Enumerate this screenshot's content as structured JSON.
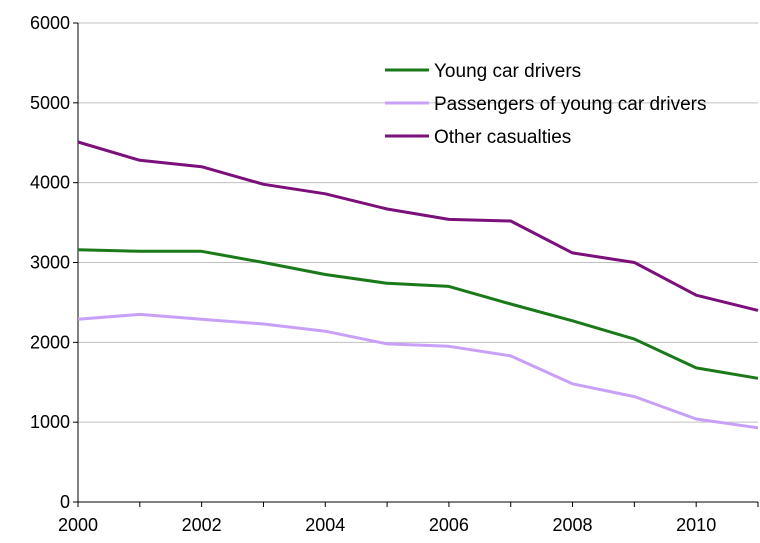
{
  "chart_data": {
    "type": "line",
    "title": "",
    "xlabel": "",
    "ylabel": "",
    "x": [
      2000,
      2001,
      2002,
      2003,
      2004,
      2005,
      2006,
      2007,
      2008,
      2009,
      2010,
      2011
    ],
    "xlim": [
      2000,
      2011
    ],
    "ylim": [
      0,
      6000
    ],
    "x_ticks": [
      2000,
      2002,
      2004,
      2006,
      2008,
      2010
    ],
    "y_ticks": [
      0,
      1000,
      2000,
      3000,
      4000,
      5000,
      6000
    ],
    "grid": true,
    "legend_position": "top-right",
    "series": [
      {
        "name": "Young car drivers",
        "color": "#1a7a1a",
        "values": [
          3160,
          3140,
          3140,
          3000,
          2850,
          2740,
          2700,
          2480,
          2270,
          2040,
          1680,
          1550
        ]
      },
      {
        "name": "Passengers of young car drivers",
        "color": "#c8a0f8",
        "values": [
          2290,
          2350,
          2290,
          2230,
          2140,
          1980,
          1950,
          1830,
          1480,
          1320,
          1040,
          930
        ]
      },
      {
        "name": "Other casualties",
        "color": "#7b0f7b",
        "values": [
          4510,
          4280,
          4200,
          3980,
          3860,
          3670,
          3540,
          3520,
          3120,
          3000,
          2590,
          2400
        ]
      }
    ]
  }
}
